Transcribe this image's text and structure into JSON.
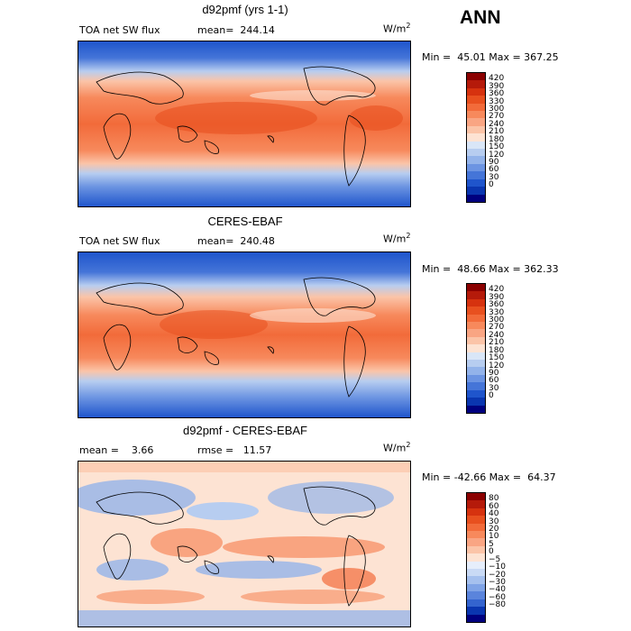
{
  "season": "ANN",
  "panels": [
    {
      "title": "d92pmf (yrs 1-1)",
      "left_label": "TOA net SW flux",
      "center_label": "mean=  244.14",
      "units": "W/m",
      "units_exp": "2",
      "minmax": "Min =  45.01 Max = 367.25",
      "cbar_ticks": [
        "420",
        "390",
        "360",
        "330",
        "300",
        "270",
        "240",
        "210",
        "180",
        "150",
        "120",
        "90",
        "60",
        "30",
        "0"
      ],
      "cbar_colors": [
        "#8b0000",
        "#b51a0a",
        "#d6320f",
        "#e8501f",
        "#f26b3a",
        "#f7895c",
        "#f9a583",
        "#fbc4a8",
        "#fde3d3",
        "#d9e6f7",
        "#b7cdf0",
        "#93b3ea",
        "#6c94e2",
        "#4575d8",
        "#1f55cc",
        "#0a36b0",
        "#00007f"
      ]
    },
    {
      "title": "CERES-EBAF",
      "left_label": "TOA net SW flux",
      "center_label": "mean=  240.48",
      "units": "W/m",
      "units_exp": "2",
      "minmax": "Min =  48.66 Max = 362.33",
      "cbar_ticks": [
        "420",
        "390",
        "360",
        "330",
        "300",
        "270",
        "240",
        "210",
        "180",
        "150",
        "120",
        "90",
        "60",
        "30",
        "0"
      ],
      "cbar_colors": [
        "#8b0000",
        "#b51a0a",
        "#d6320f",
        "#e8501f",
        "#f26b3a",
        "#f7895c",
        "#f9a583",
        "#fbc4a8",
        "#fde3d3",
        "#d9e6f7",
        "#b7cdf0",
        "#93b3ea",
        "#6c94e2",
        "#4575d8",
        "#1f55cc",
        "#0a36b0",
        "#00007f"
      ]
    },
    {
      "title": "d92pmf - CERES-EBAF",
      "left_label": "mean =    3.66",
      "center_label": "rmse =   11.57",
      "units": "W/m",
      "units_exp": "2",
      "minmax": "Min = -42.66 Max =  64.37",
      "cbar_ticks": [
        "80",
        "60",
        "40",
        "30",
        "20",
        "10",
        "5",
        "0",
        "−5",
        "−10",
        "−20",
        "−30",
        "−40",
        "−60",
        "−80"
      ],
      "cbar_colors": [
        "#8b0000",
        "#b51a0a",
        "#d6320f",
        "#e8501f",
        "#f26b3a",
        "#f7895c",
        "#f9a583",
        "#fbc4a8",
        "#fde3d3",
        "#e6eefb",
        "#c9daf5",
        "#a5c0ee",
        "#7fa3e6",
        "#5a84dc",
        "#3464cf",
        "#0a36b0",
        "#00007f"
      ]
    }
  ]
}
